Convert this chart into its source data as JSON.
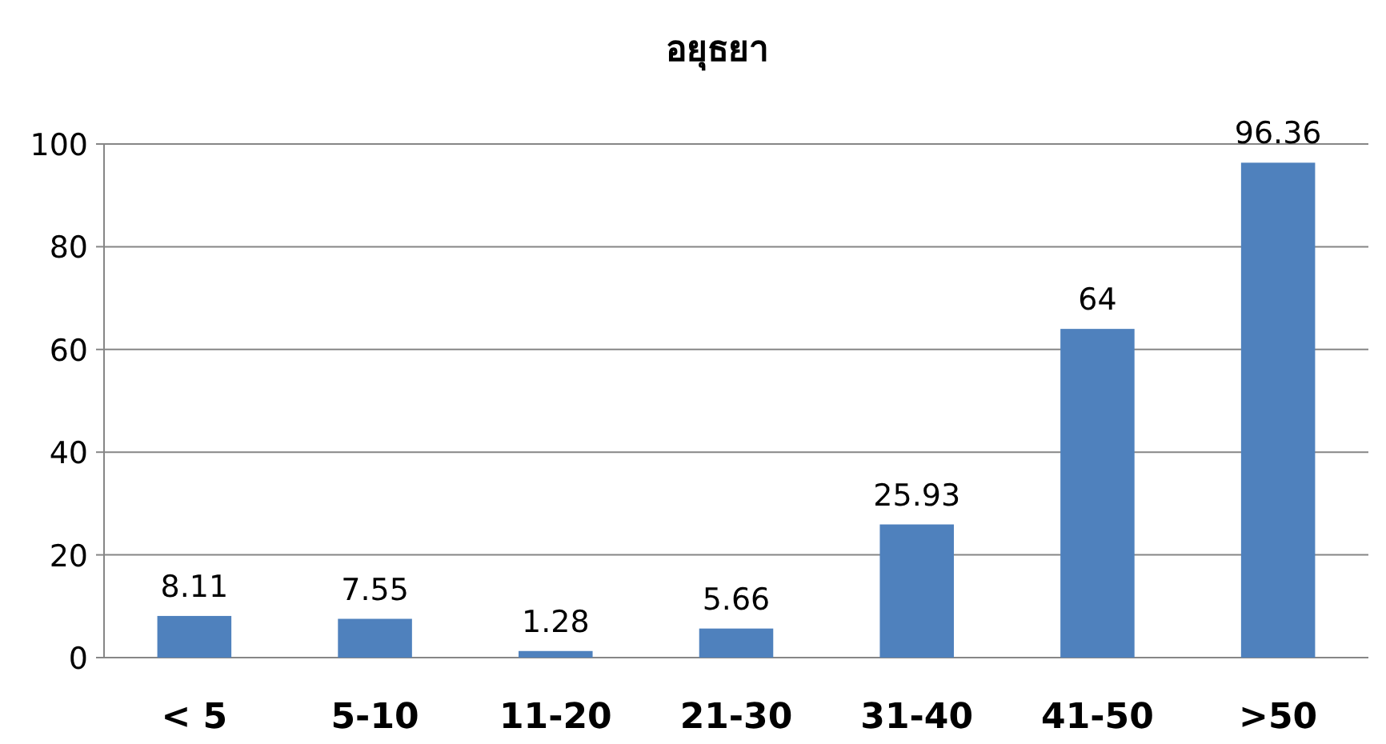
{
  "chart_data": {
    "type": "bar",
    "title": "อยุธยา",
    "categories": [
      "< 5",
      "5-10",
      "11-20",
      "21-30",
      "31-40",
      "41-50",
      ">50"
    ],
    "values": [
      8.11,
      7.55,
      1.28,
      5.66,
      25.93,
      64,
      96.36
    ],
    "color": "#4f81bd",
    "ylim": [
      0,
      100
    ],
    "yticks": [
      0,
      20,
      40,
      60,
      80,
      100
    ],
    "grid": "y",
    "data_labels": true
  }
}
